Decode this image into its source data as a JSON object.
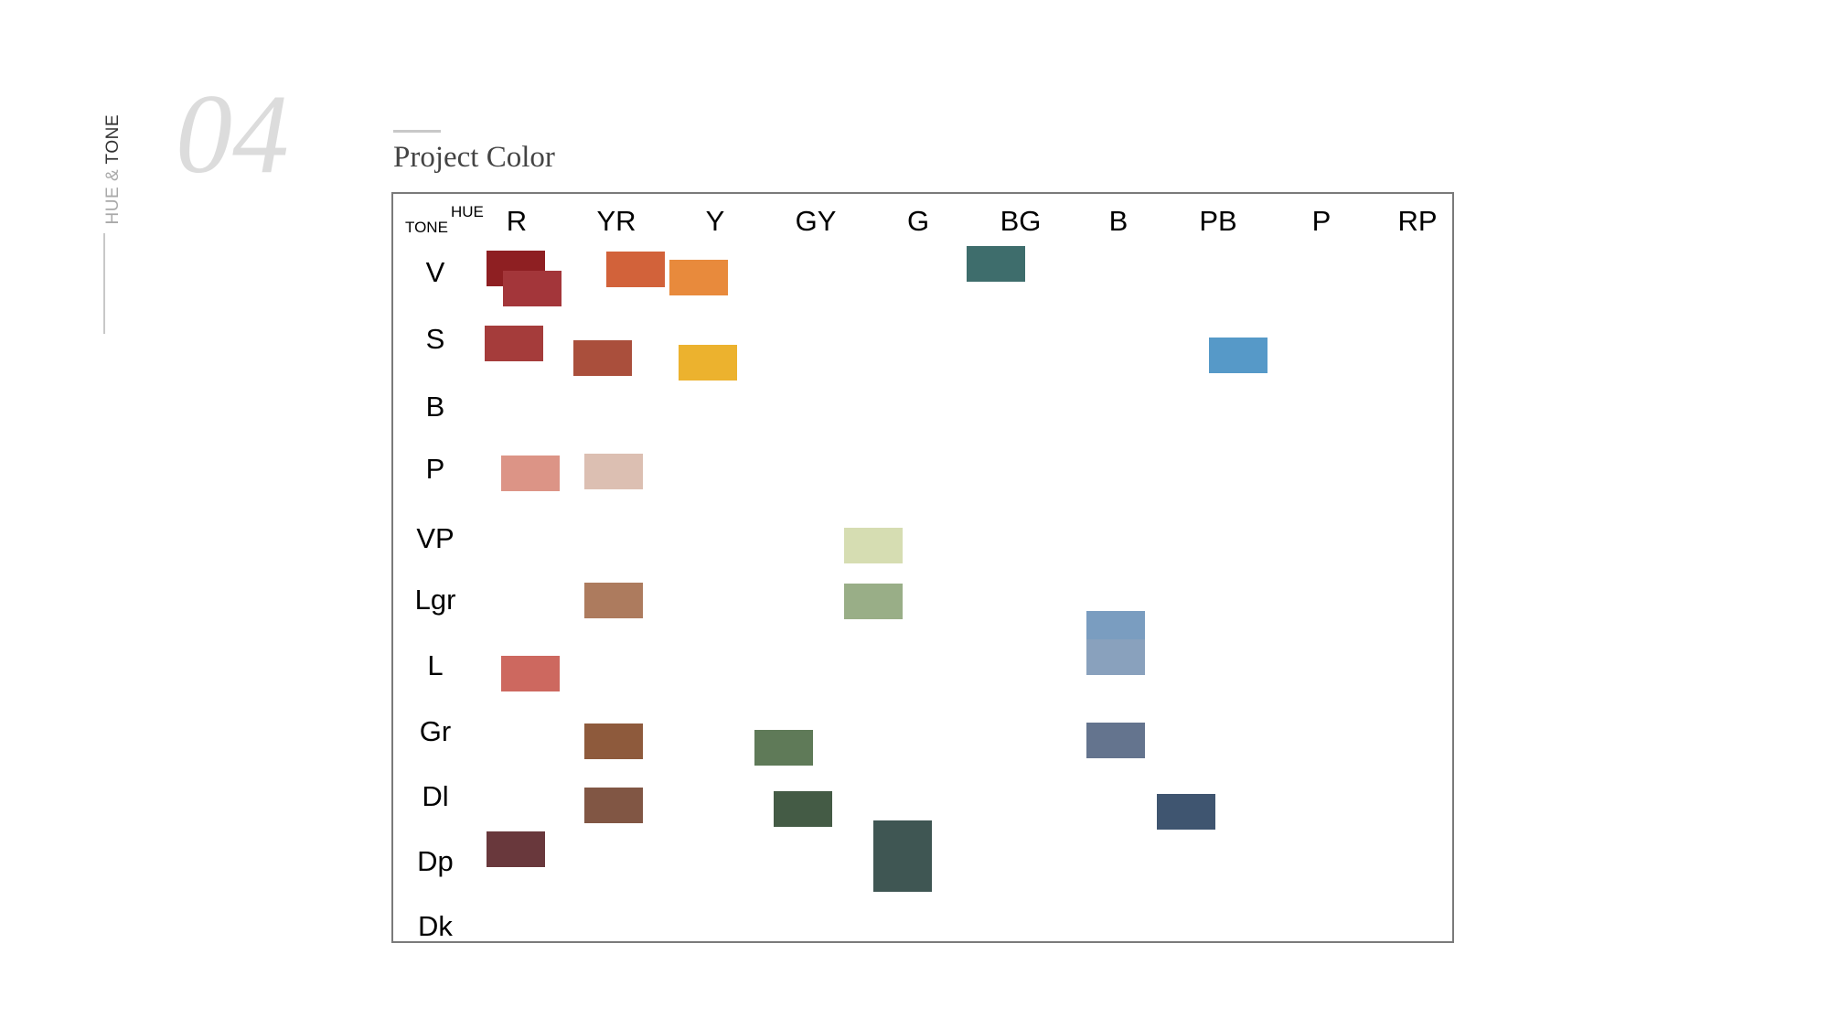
{
  "sidebar": {
    "label_hue": "HUE &",
    "label_tone": "TONE"
  },
  "header": {
    "section_number": "04",
    "title": "Project Color"
  },
  "chart_data": {
    "type": "table",
    "corner_hue_label": "HUE",
    "corner_tone_label": "TONE",
    "hues": [
      "R",
      "YR",
      "Y",
      "GY",
      "G",
      "BG",
      "B",
      "PB",
      "P",
      "RP"
    ],
    "tones": [
      "V",
      "S",
      "B",
      "P",
      "VP",
      "Lgr",
      "L",
      "Gr",
      "Dl",
      "Dp",
      "Dk"
    ],
    "swatches": [
      {
        "hue": "R",
        "tone": "V",
        "color": "#8e1f22"
      },
      {
        "hue": "R",
        "tone": "V",
        "color": "#a3363a"
      },
      {
        "hue": "R",
        "tone": "S",
        "color": "#a53c3b"
      },
      {
        "hue": "YR",
        "tone": "V",
        "color": "#d2623a"
      },
      {
        "hue": "Y",
        "tone": "V",
        "color": "#e88a3c"
      },
      {
        "hue": "YR",
        "tone": "S",
        "color": "#aa4f3c"
      },
      {
        "hue": "Y",
        "tone": "S",
        "color": "#ecb22e"
      },
      {
        "hue": "BG",
        "tone": "V",
        "color": "#3e6d6c"
      },
      {
        "hue": "PB",
        "tone": "S",
        "color": "#5699c8"
      },
      {
        "hue": "R",
        "tone": "P",
        "color": "#dc9486"
      },
      {
        "hue": "YR",
        "tone": "P",
        "color": "#dcbfb2"
      },
      {
        "hue": "G",
        "tone": "VP",
        "color": "#d6ddb2"
      },
      {
        "hue": "YR",
        "tone": "Lgr",
        "color": "#ad7b5e"
      },
      {
        "hue": "G",
        "tone": "Lgr",
        "color": "#99ae87"
      },
      {
        "hue": "B",
        "tone": "Lgr",
        "color": "#7a9dc0"
      },
      {
        "hue": "B",
        "tone": "L",
        "color": "#89a1bd"
      },
      {
        "hue": "R",
        "tone": "L",
        "color": "#cd685f"
      },
      {
        "hue": "B",
        "tone": "Gr",
        "color": "#64748e"
      },
      {
        "hue": "GY",
        "tone": "Gr",
        "color": "#5f7a58"
      },
      {
        "hue": "YR",
        "tone": "Gr",
        "color": "#8e5a3c"
      },
      {
        "hue": "YR",
        "tone": "Dl",
        "color": "#815644"
      },
      {
        "hue": "GY",
        "tone": "Dl",
        "color": "#445b45"
      },
      {
        "hue": "B",
        "tone": "Dl",
        "color": "#3f5570"
      },
      {
        "hue": "R",
        "tone": "Dp",
        "color": "#69383c"
      },
      {
        "hue": "G",
        "tone": "Dp",
        "color": "#3f5653"
      }
    ]
  }
}
